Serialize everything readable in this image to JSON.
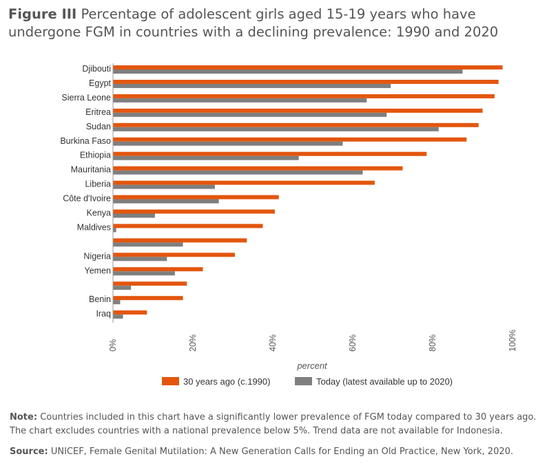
{
  "header": {
    "figure_label": "Figure III",
    "title_text": "Percentage of adolescent girls aged 15-19 years who have undergone FGM in countries with a declining prevalence: 1990 and 2020"
  },
  "chart_data": {
    "type": "bar",
    "orientation": "horizontal",
    "categories": [
      "Djibouti",
      "Egypt",
      "Sierra Leone",
      "Eritrea",
      "Sudan",
      "Burkina Faso",
      "Ethiopia",
      "Mauritania",
      "Liberia",
      "Côte d'Ivoire",
      "Kenya",
      "Maldives",
      "",
      "Nigeria",
      "Yemen",
      "",
      "Benin",
      "Iraq"
    ],
    "series": [
      {
        "name": "30 years ago (c.1990)",
        "color": "#e3560e",
        "values": [
          97.5,
          96.5,
          95.5,
          92.5,
          91.5,
          88.5,
          78.5,
          72.5,
          65.5,
          41.5,
          40.5,
          37.5,
          33.5,
          30.5,
          22.5,
          18.5,
          17.5,
          8.5
        ]
      },
      {
        "name": "Today (latest available up to 2020)",
        "color": "#7f7f7f",
        "values": [
          87.5,
          69.5,
          63.5,
          68.5,
          81.5,
          57.5,
          46.5,
          62.5,
          25.5,
          26.5,
          10.5,
          0.8,
          17.5,
          13.5,
          15.5,
          4.5,
          1.8,
          2.5
        ]
      }
    ],
    "xlim": [
      0,
      100
    ],
    "x_ticks": [
      "0%",
      "20%",
      "40%",
      "60%",
      "80%",
      "100%"
    ],
    "xlabel": "percent",
    "ylabel": "",
    "legend_position": "bottom"
  },
  "footer": {
    "note_label": "Note:",
    "note_text": "Countries included in this chart have a significantly lower prevalence of FGM today compared to 30 years ago. The chart excludes countries with a national prevalence below 5%. Trend data are not available for Indonesia.",
    "source_label": "Source:",
    "source_text": "UNICEF, Female Genital Mutilation: A New Generation Calls for Ending an Old Practice, New York, 2020."
  }
}
